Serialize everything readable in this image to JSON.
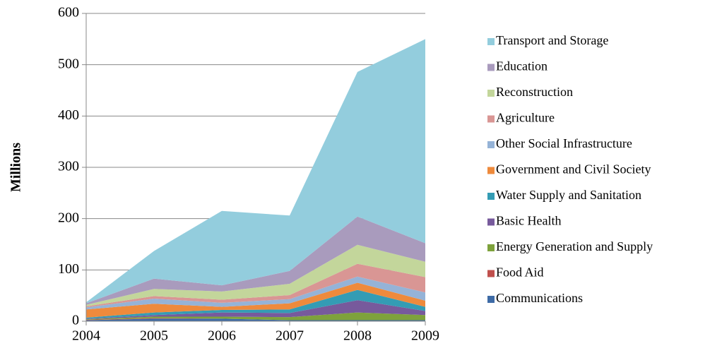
{
  "chart_data": {
    "type": "stacked_area",
    "y_label": "Millions",
    "x": [
      2004,
      2005,
      2006,
      2007,
      2008,
      2009
    ],
    "xlim": [
      2004,
      2009
    ],
    "xticks": [
      2004,
      2005,
      2006,
      2007,
      2008,
      2009
    ],
    "ylim": [
      0,
      600
    ],
    "yticks": [
      0,
      100,
      200,
      300,
      400,
      500,
      600
    ],
    "grid": true,
    "legend": "right",
    "series": [
      {
        "name": "Communications",
        "color": "#3e6ba6",
        "values": [
          2,
          5,
          5,
          2,
          2,
          2
        ]
      },
      {
        "name": "Food Aid",
        "color": "#c0504d",
        "values": [
          1,
          1,
          0,
          0,
          0,
          0
        ]
      },
      {
        "name": "Energy Generation and Supply",
        "color": "#7ea23c",
        "values": [
          1,
          3,
          4,
          6,
          15,
          10
        ]
      },
      {
        "name": "Basic Health",
        "color": "#775a9c",
        "values": [
          1,
          3,
          8,
          8,
          24,
          8
        ]
      },
      {
        "name": "Water Supply and Sanitation",
        "color": "#349cb4",
        "values": [
          2,
          5,
          5,
          7,
          20,
          8
        ]
      },
      {
        "name": "Government and Civil Society",
        "color": "#ee8a3c",
        "values": [
          16,
          17,
          6,
          12,
          14,
          12
        ]
      },
      {
        "name": "Other Social Infrastructure",
        "color": "#95b3d7",
        "values": [
          4,
          10,
          8,
          8,
          12,
          16
        ]
      },
      {
        "name": "Agriculture",
        "color": "#d99694",
        "values": [
          2,
          5,
          6,
          8,
          25,
          30
        ]
      },
      {
        "name": "Reconstruction",
        "color": "#c3d69b",
        "values": [
          3,
          14,
          16,
          22,
          37,
          30
        ]
      },
      {
        "name": "Education",
        "color": "#a99bbd",
        "values": [
          3,
          20,
          12,
          25,
          55,
          36
        ]
      },
      {
        "name": "Transport and Storage",
        "color": "#93cddd",
        "values": [
          2,
          54,
          145,
          108,
          282,
          398
        ]
      }
    ]
  }
}
